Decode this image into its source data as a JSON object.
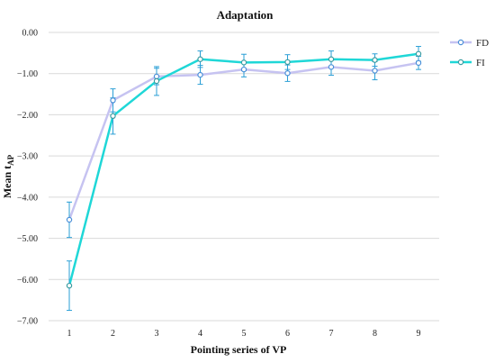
{
  "chart_data": {
    "type": "line",
    "title": "Adaptation",
    "xlabel": "Pointing series of VP",
    "ylabel_main": "Mean t",
    "ylabel_sub": "AP",
    "x": [
      1,
      2,
      3,
      4,
      5,
      6,
      7,
      8,
      9
    ],
    "ylim": [
      -7,
      0
    ],
    "yticks": [
      0,
      -1,
      -2,
      -3,
      -4,
      -5,
      -6,
      -7
    ],
    "ytick_labels": [
      "0.00",
      "−1.00",
      "−2.00",
      "−3.00",
      "−4.00",
      "−5.00",
      "−6.00",
      "−7.00"
    ],
    "grid": true,
    "legend_position": "right",
    "series": [
      {
        "name": "FD",
        "color": "#c6c3f1",
        "marker_color": "#4a8fd8",
        "values": [
          -4.55,
          -1.65,
          -1.07,
          -1.03,
          -0.9,
          -0.99,
          -0.84,
          -0.93,
          -0.74
        ],
        "errors": [
          0.43,
          0.28,
          0.2,
          0.23,
          0.18,
          0.2,
          0.2,
          0.22,
          0.16
        ]
      },
      {
        "name": "FI",
        "color": "#1fd7d7",
        "marker_color": "#3a9ba0",
        "values": [
          -6.15,
          -2.03,
          -1.18,
          -0.65,
          -0.73,
          -0.72,
          -0.65,
          -0.67,
          -0.52
        ],
        "errors": [
          0.6,
          0.44,
          0.35,
          0.2,
          0.2,
          0.18,
          0.2,
          0.15,
          0.18
        ]
      }
    ],
    "error_bar_color": "#2a9fd6"
  }
}
